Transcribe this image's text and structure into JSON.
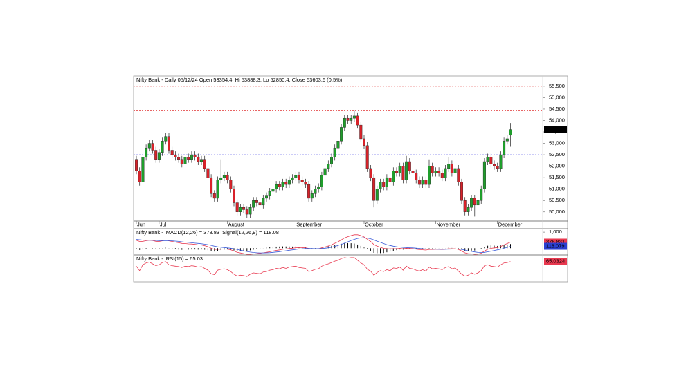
{
  "chart_data": [
    {
      "type": "candlestick",
      "title": "Nifty Bank - Daily 05/12/24 Open 53354.4, Hi 53888.3, Lo 52850.4, Close 53603.6 (0.5%)",
      "categories": [
        "Jun",
        null,
        null,
        null,
        null,
        null,
        null,
        "Jul",
        null,
        null,
        null,
        null,
        null,
        null,
        null,
        null,
        null,
        null,
        null,
        null,
        null,
        null,
        null,
        null,
        null,
        null,
        null,
        null,
        "August",
        null,
        null,
        null,
        null,
        null,
        null,
        null,
        null,
        null,
        null,
        null,
        null,
        null,
        null,
        null,
        null,
        null,
        null,
        null,
        null,
        "September",
        null,
        null,
        null,
        null,
        null,
        null,
        null,
        null,
        null,
        null,
        null,
        null,
        null,
        null,
        null,
        null,
        null,
        null,
        null,
        null,
        "October",
        null,
        null,
        null,
        null,
        null,
        null,
        null,
        null,
        null,
        null,
        null,
        null,
        null,
        null,
        null,
        null,
        null,
        null,
        null,
        null,
        null,
        "November",
        null,
        null,
        null,
        null,
        null,
        null,
        null,
        null,
        null,
        null,
        null,
        null,
        null,
        null,
        null,
        null,
        null,
        null,
        "December",
        null,
        null,
        null,
        null
      ],
      "open": [
        52300,
        51800,
        51300,
        52400,
        52800,
        53000,
        52700,
        52300,
        52600,
        53100,
        53300,
        52700,
        52500,
        52400,
        52300,
        52100,
        52400,
        52300,
        52500,
        52400,
        52200,
        52300,
        51900,
        51500,
        50800,
        50600,
        51400,
        51500,
        51600,
        51400,
        51000,
        50400,
        50000,
        50200,
        50100,
        49900,
        50200,
        50500,
        50400,
        50300,
        50600,
        50700,
        50900,
        51000,
        51200,
        51100,
        51300,
        51200,
        51400,
        51500,
        51600,
        51400,
        51300,
        51200,
        50600,
        50800,
        51000,
        51100,
        51600,
        51900,
        52100,
        52400,
        52800,
        53100,
        53700,
        54100,
        54000,
        54100,
        54200,
        53800,
        53200,
        52900,
        51900,
        51500,
        50500,
        51000,
        51300,
        51100,
        51500,
        51300,
        51800,
        51700,
        52000,
        51400,
        52200,
        51800,
        51700,
        51400,
        51200,
        51400,
        51200,
        52000,
        51700,
        51800,
        51700,
        51500,
        51900,
        52100,
        51700,
        51900,
        51300,
        50500,
        50000,
        50200,
        50600,
        50300,
        50500,
        51000,
        52200,
        52400,
        52100,
        52000,
        51900,
        52500,
        53100,
        53354.4
      ],
      "high": [
        52450,
        51950,
        52550,
        52950,
        53150,
        53150,
        52850,
        52750,
        53250,
        53450,
        53450,
        52850,
        52650,
        52550,
        52450,
        52550,
        52550,
        52650,
        52650,
        52550,
        52450,
        52450,
        52050,
        51650,
        50950,
        51550,
        52300,
        51750,
        51750,
        51550,
        51150,
        50550,
        50350,
        50350,
        50250,
        50350,
        50650,
        50650,
        50550,
        50750,
        50850,
        51050,
        51150,
        51350,
        51350,
        51450,
        51450,
        51550,
        51650,
        51750,
        51750,
        51550,
        51450,
        51350,
        50950,
        51150,
        51250,
        51750,
        52050,
        52250,
        52550,
        52950,
        53250,
        53850,
        54250,
        54250,
        54250,
        54450,
        54350,
        53950,
        53350,
        53050,
        52050,
        51650,
        51150,
        51450,
        51450,
        51650,
        51650,
        51950,
        51950,
        52150,
        52150,
        52450,
        52350,
        51950,
        51850,
        51550,
        51550,
        51550,
        52300,
        52150,
        51950,
        51950,
        51850,
        52050,
        52400,
        52250,
        52050,
        52050,
        51450,
        50650,
        50350,
        50750,
        50750,
        50650,
        51150,
        52350,
        52550,
        52550,
        52250,
        52150,
        52650,
        53250,
        53350,
        53888.3
      ],
      "low": [
        51650,
        51150,
        51200,
        52250,
        52650,
        52550,
        52150,
        52150,
        52450,
        52950,
        52550,
        52350,
        52250,
        52150,
        51950,
        51950,
        52150,
        52150,
        52250,
        52050,
        52050,
        51750,
        51350,
        50650,
        50450,
        50450,
        51250,
        51350,
        51250,
        50850,
        50250,
        49850,
        49850,
        49950,
        49750,
        49750,
        50050,
        50250,
        50150,
        50150,
        50450,
        50550,
        50750,
        50850,
        50950,
        50950,
        51050,
        51050,
        51250,
        51350,
        51250,
        51150,
        51050,
        50450,
        50450,
        50650,
        50850,
        50950,
        51450,
        51750,
        51950,
        52250,
        52650,
        52950,
        53550,
        53850,
        53850,
        53950,
        53650,
        53050,
        52750,
        51750,
        51350,
        50200,
        50350,
        50850,
        50950,
        50950,
        51150,
        51150,
        51550,
        51550,
        51250,
        51250,
        51650,
        51550,
        51250,
        51050,
        51050,
        51050,
        51050,
        51550,
        51550,
        51550,
        51350,
        51350,
        51750,
        51550,
        51550,
        51150,
        50350,
        49850,
        49850,
        50050,
        49800,
        50150,
        50350,
        50850,
        52050,
        51950,
        51850,
        51750,
        51750,
        52350,
        52950,
        52850.4
      ],
      "close": [
        51800,
        51300,
        52400,
        52800,
        53000,
        52700,
        52300,
        52600,
        53100,
        53300,
        52700,
        52500,
        52400,
        52300,
        52100,
        52400,
        52300,
        52500,
        52400,
        52200,
        52300,
        51900,
        51500,
        50800,
        50600,
        51400,
        51500,
        51600,
        51400,
        51000,
        50400,
        50000,
        50200,
        50100,
        49900,
        50200,
        50500,
        50400,
        50300,
        50600,
        50700,
        50900,
        51000,
        51200,
        51100,
        51300,
        51200,
        51400,
        51500,
        51600,
        51400,
        51300,
        51200,
        50600,
        50800,
        51000,
        51100,
        51600,
        51900,
        52100,
        52400,
        52800,
        53100,
        53700,
        54100,
        54000,
        54100,
        54200,
        53800,
        53200,
        52900,
        51900,
        51500,
        50500,
        51000,
        51300,
        51100,
        51500,
        51300,
        51800,
        51700,
        52000,
        51400,
        52200,
        51800,
        51700,
        51400,
        51200,
        51400,
        51200,
        52000,
        51700,
        51800,
        51700,
        51500,
        51900,
        52100,
        51700,
        51900,
        51300,
        50500,
        50000,
        50200,
        50600,
        50300,
        50500,
        51000,
        52200,
        52400,
        52100,
        52000,
        51900,
        52500,
        53100,
        53200,
        53603.6
      ],
      "up_color": "#1f9e2c",
      "down_color": "#d8222a",
      "ylim": [
        49600,
        55950
      ],
      "yticks": [
        {
          "value": 50000,
          "label": "50,000"
        },
        {
          "value": 50500,
          "label": "50,500"
        },
        {
          "value": 51000,
          "label": "51,000"
        },
        {
          "value": 51500,
          "label": "51,500"
        },
        {
          "value": 52000,
          "label": "52,000"
        },
        {
          "value": 52500,
          "label": "52,500"
        },
        {
          "value": 53000,
          "label": "53,000"
        },
        {
          "value": 53500,
          "label": "53,500"
        },
        {
          "value": 54000,
          "label": "54,000"
        },
        {
          "value": 54500,
          "label": "54,500"
        },
        {
          "value": 55000,
          "label": "55,000"
        },
        {
          "value": 55500,
          "label": "55,500"
        }
      ],
      "levels": [
        {
          "value": 55500,
          "color": "#e03030"
        },
        {
          "value": 54450,
          "color": "#e03030"
        },
        {
          "value": 53550,
          "color": "#3030e0"
        },
        {
          "value": 52500,
          "color": "#3030e0"
        }
      ],
      "markers": [
        {
          "value": 53603.6,
          "label": "53,603.6",
          "color": "#000000"
        }
      ]
    },
    {
      "type": "line",
      "title": "Nifty Bank -",
      "series": [
        {
          "name": "MACD(12,26) = 378.83",
          "color": "#e8384f",
          "values": [
            500,
            420,
            430,
            470,
            500,
            480,
            430,
            420,
            460,
            500,
            460,
            420,
            380,
            340,
            300,
            290,
            270,
            260,
            240,
            210,
            200,
            160,
            100,
            0,
            -80,
            -70,
            -60,
            -50,
            -60,
            -100,
            -180,
            -260,
            -300,
            -340,
            -380,
            -380,
            -360,
            -340,
            -320,
            -290,
            -260,
            -220,
            -180,
            -140,
            -110,
            -70,
            -50,
            -20,
            0,
            30,
            40,
            40,
            30,
            -20,
            -40,
            -40,
            -30,
            20,
            80,
            140,
            220,
            310,
            400,
            520,
            640,
            720,
            790,
            840,
            840,
            790,
            700,
            560,
            420,
            230,
            130,
            60,
            -10,
            -30,
            -40,
            -30,
            -30,
            -10,
            -40,
            0,
            -10,
            -30,
            -60,
            -90,
            -100,
            -120,
            -80,
            -80,
            -70,
            -70,
            -80,
            -60,
            -30,
            -40,
            -30,
            -80,
            -180,
            -290,
            -340,
            -350,
            -380,
            -370,
            -310,
            -180,
            -70,
            -10,
            20,
            40,
            110,
            210,
            290,
            378.83
          ]
        },
        {
          "name": "Signal(12,26,9) = 118.08",
          "color": "#3a5bd9",
          "values": [
            550,
            530,
            510,
            500,
            500,
            495,
            485,
            475,
            470,
            475,
            470,
            460,
            445,
            425,
            400,
            380,
            360,
            340,
            320,
            300,
            280,
            255,
            225,
            180,
            130,
            90,
            60,
            40,
            20,
            0,
            -35,
            -80,
            -125,
            -170,
            -210,
            -245,
            -270,
            -285,
            -295,
            -295,
            -290,
            -280,
            -260,
            -240,
            -215,
            -185,
            -160,
            -130,
            -105,
            -80,
            -55,
            -35,
            -20,
            -20,
            -25,
            -28,
            -28,
            -20,
            0,
            25,
            65,
            115,
            170,
            240,
            320,
            400,
            480,
            550,
            610,
            645,
            655,
            635,
            590,
            520,
            440,
            365,
            290,
            225,
            170,
            130,
            95,
            70,
            50,
            40,
            30,
            20,
            5,
            -15,
            -30,
            -50,
            -55,
            -60,
            -62,
            -64,
            -67,
            -66,
            -60,
            -56,
            -50,
            -55,
            -80,
            -120,
            -165,
            -200,
            -235,
            -265,
            -275,
            -260,
            -225,
            -185,
            -145,
            -105,
            -60,
            -5,
            55,
            118.08
          ]
        }
      ],
      "histogram": {
        "color": "#000000",
        "values": [
          -50,
          -110,
          -80,
          -30,
          0,
          -15,
          -55,
          -55,
          -10,
          25,
          -10,
          -40,
          -65,
          -85,
          -100,
          -90,
          -90,
          -80,
          -80,
          -90,
          -80,
          -95,
          -125,
          -180,
          -210,
          -160,
          -120,
          -90,
          -80,
          -100,
          -145,
          -180,
          -175,
          -170,
          -170,
          -135,
          -90,
          -55,
          -25,
          5,
          30,
          60,
          80,
          100,
          105,
          115,
          110,
          110,
          105,
          110,
          95,
          75,
          50,
          0,
          -15,
          -12,
          -2,
          40,
          80,
          115,
          155,
          195,
          230,
          280,
          320,
          320,
          310,
          290,
          230,
          145,
          45,
          -75,
          -170,
          -290,
          -310,
          -305,
          -300,
          -255,
          -210,
          -160,
          -125,
          -80,
          -90,
          -40,
          -40,
          -50,
          -65,
          -75,
          -70,
          -70,
          -25,
          -20,
          -8,
          -6,
          -13,
          6,
          30,
          16,
          20,
          -25,
          -100,
          -170,
          -175,
          -150,
          -145,
          -105,
          -35,
          80,
          155,
          175,
          165,
          145,
          170,
          215,
          235,
          260.75
        ]
      },
      "ylim": [
        -420,
        1220
      ],
      "yticks": [
        {
          "value": 1000,
          "label": "1,000"
        }
      ],
      "markers": [
        {
          "value": 378.83,
          "label": "378.831",
          "color": "#e8384f"
        },
        {
          "value": 118.079,
          "label": "118.079",
          "color": "#2a3fd0"
        }
      ]
    },
    {
      "type": "line",
      "title": "Nifty Bank -",
      "series": [
        {
          "name": "RSI(15) = 65.03",
          "color": "#e8384f",
          "values": [
            55,
            45,
            58,
            62,
            64,
            60,
            56,
            58,
            63,
            65,
            58,
            56,
            55,
            54,
            52,
            55,
            54,
            56,
            55,
            53,
            54,
            50,
            46,
            38,
            36,
            46,
            48,
            49,
            47,
            43,
            37,
            33,
            35,
            34,
            32,
            37,
            40,
            39,
            38,
            42,
            43,
            46,
            47,
            50,
            49,
            52,
            50,
            53,
            54,
            55,
            52,
            51,
            50,
            43,
            45,
            48,
            49,
            55,
            58,
            60,
            63,
            66,
            68,
            72,
            74,
            73,
            74,
            74,
            68,
            62,
            58,
            48,
            44,
            35,
            41,
            45,
            43,
            47,
            45,
            51,
            50,
            53,
            46,
            55,
            50,
            49,
            46,
            44,
            47,
            44,
            53,
            49,
            50,
            49,
            47,
            52,
            54,
            49,
            51,
            44,
            37,
            33,
            35,
            40,
            37,
            40,
            45,
            56,
            58,
            55,
            54,
            53,
            58,
            62,
            63,
            65.03
          ]
        }
      ],
      "ylim": [
        20,
        80
      ],
      "markers": [
        {
          "value": 65.0324,
          "label": "65.0324",
          "color": "#e8384f"
        }
      ]
    }
  ]
}
